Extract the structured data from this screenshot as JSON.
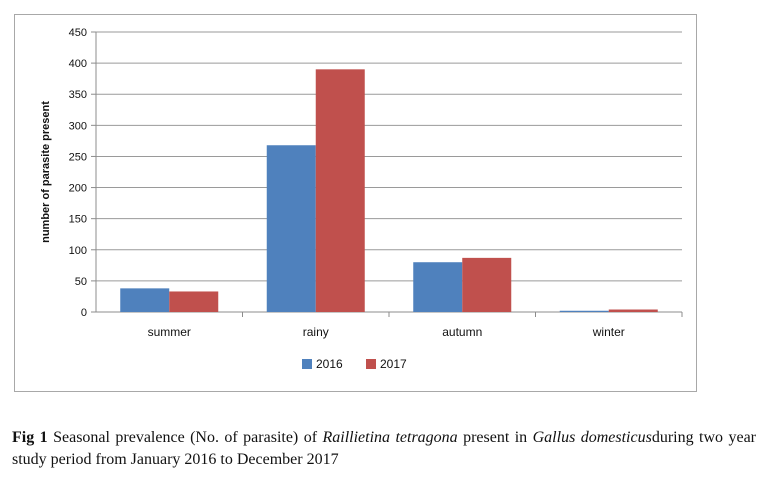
{
  "chart_data": {
    "type": "bar",
    "title": "",
    "xlabel": "",
    "ylabel": "number of parasite present",
    "ylim": [
      0,
      450
    ],
    "yticks": [
      "0",
      "50",
      "100",
      "150",
      "200",
      "250",
      "300",
      "350",
      "400",
      "450"
    ],
    "categories": [
      "summer",
      "rainy",
      "autumn",
      "winter"
    ],
    "series": [
      {
        "name": "2016",
        "color": "#4f81bd",
        "values": [
          38,
          268,
          80,
          2
        ]
      },
      {
        "name": "2017",
        "color": "#c0504d",
        "values": [
          33,
          390,
          87,
          4
        ]
      }
    ],
    "grid": true,
    "legend_position": "bottom"
  },
  "caption": {
    "label": "Fig 1",
    "text_before": " Seasonal prevalence (No. of parasite) of ",
    "species1": "Raillietina tetragona",
    "text_middle": " present in ",
    "species2": "Gallus domesticus",
    "text_after": "during two year study period from January 2016 to December 2017"
  }
}
